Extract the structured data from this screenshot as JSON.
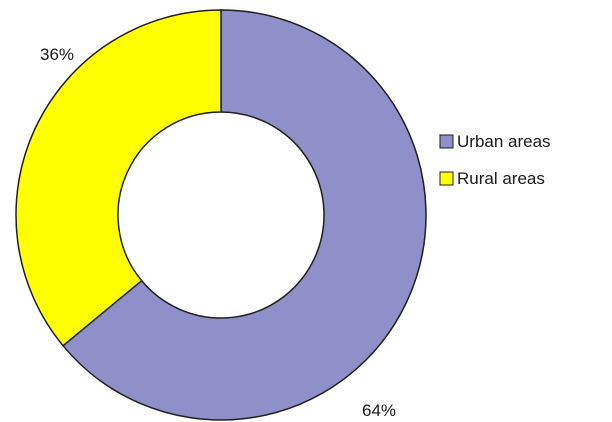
{
  "chart_data": {
    "type": "pie",
    "variant": "donut",
    "title": "",
    "slices": [
      {
        "label": "Urban areas",
        "value": 64,
        "display": "64%",
        "color": "#8f8fca"
      },
      {
        "label": "Rural areas",
        "value": 36,
        "display": "36%",
        "color": "#ffff00"
      }
    ],
    "start_angle": "12 o'clock, clockwise",
    "legend": {
      "placement": "right",
      "entries": [
        "Urban areas",
        "Rural areas"
      ]
    },
    "border_color": "#1f1f1f"
  }
}
